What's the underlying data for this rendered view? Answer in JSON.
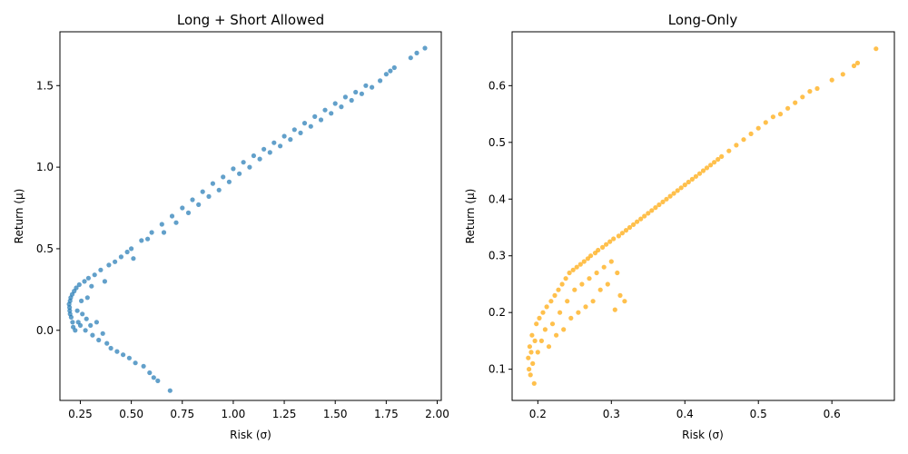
{
  "chart_data": [
    {
      "type": "scatter",
      "title": "Long + Short Allowed",
      "xlabel": "Risk (σ)",
      "ylabel": "Return (μ)",
      "xlim": [
        0.15,
        2.02
      ],
      "ylim": [
        -0.43,
        1.83
      ],
      "xticks": [
        0.25,
        0.5,
        0.75,
        1.0,
        1.25,
        1.5,
        1.75,
        2.0
      ],
      "xtick_labels": [
        "0.25",
        "0.50",
        "0.75",
        "1.00",
        "1.25",
        "1.50",
        "1.75",
        "2.00"
      ],
      "yticks": [
        0.0,
        0.5,
        1.0,
        1.5
      ],
      "ytick_labels": [
        "0.0",
        "0.5",
        "1.0",
        "1.5"
      ],
      "grid": false,
      "color": "#1f77b4",
      "series": [
        {
          "points": [
            [
              0.195,
              0.16
            ],
            [
              0.197,
              0.14
            ],
            [
              0.198,
              0.12
            ],
            [
              0.2,
              0.18
            ],
            [
              0.2,
              0.1
            ],
            [
              0.203,
              0.2
            ],
            [
              0.205,
              0.08
            ],
            [
              0.21,
              0.22
            ],
            [
              0.212,
              0.05
            ],
            [
              0.215,
              0.02
            ],
            [
              0.22,
              0.24
            ],
            [
              0.225,
              0.0
            ],
            [
              0.23,
              0.26
            ],
            [
              0.235,
              0.12
            ],
            [
              0.24,
              0.05
            ],
            [
              0.245,
              0.28
            ],
            [
              0.25,
              0.03
            ],
            [
              0.255,
              0.18
            ],
            [
              0.26,
              0.1
            ],
            [
              0.27,
              0.3
            ],
            [
              0.275,
              0.0
            ],
            [
              0.28,
              0.07
            ],
            [
              0.285,
              0.2
            ],
            [
              0.29,
              0.32
            ],
            [
              0.3,
              0.03
            ],
            [
              0.305,
              0.27
            ],
            [
              0.31,
              -0.03
            ],
            [
              0.32,
              0.34
            ],
            [
              0.33,
              0.05
            ],
            [
              0.34,
              -0.06
            ],
            [
              0.35,
              0.37
            ],
            [
              0.36,
              -0.02
            ],
            [
              0.37,
              0.3
            ],
            [
              0.38,
              -0.08
            ],
            [
              0.39,
              0.4
            ],
            [
              0.4,
              -0.11
            ],
            [
              0.42,
              0.42
            ],
            [
              0.43,
              -0.13
            ],
            [
              0.45,
              0.45
            ],
            [
              0.46,
              -0.15
            ],
            [
              0.48,
              0.48
            ],
            [
              0.49,
              -0.17
            ],
            [
              0.5,
              0.5
            ],
            [
              0.51,
              0.44
            ],
            [
              0.52,
              -0.2
            ],
            [
              0.55,
              0.55
            ],
            [
              0.56,
              -0.22
            ],
            [
              0.58,
              0.56
            ],
            [
              0.59,
              -0.26
            ],
            [
              0.6,
              0.6
            ],
            [
              0.61,
              -0.29
            ],
            [
              0.63,
              -0.31
            ],
            [
              0.65,
              0.65
            ],
            [
              0.66,
              0.6
            ],
            [
              0.69,
              -0.37
            ],
            [
              0.7,
              0.7
            ],
            [
              0.72,
              0.66
            ],
            [
              0.75,
              0.75
            ],
            [
              0.78,
              0.72
            ],
            [
              0.8,
              0.8
            ],
            [
              0.83,
              0.77
            ],
            [
              0.85,
              0.85
            ],
            [
              0.88,
              0.82
            ],
            [
              0.9,
              0.9
            ],
            [
              0.93,
              0.86
            ],
            [
              0.95,
              0.94
            ],
            [
              0.98,
              0.91
            ],
            [
              1.0,
              0.99
            ],
            [
              1.03,
              0.96
            ],
            [
              1.05,
              1.03
            ],
            [
              1.08,
              1.0
            ],
            [
              1.1,
              1.07
            ],
            [
              1.13,
              1.05
            ],
            [
              1.15,
              1.11
            ],
            [
              1.18,
              1.09
            ],
            [
              1.2,
              1.15
            ],
            [
              1.23,
              1.13
            ],
            [
              1.25,
              1.19
            ],
            [
              1.28,
              1.17
            ],
            [
              1.3,
              1.23
            ],
            [
              1.33,
              1.21
            ],
            [
              1.35,
              1.27
            ],
            [
              1.38,
              1.25
            ],
            [
              1.4,
              1.31
            ],
            [
              1.43,
              1.29
            ],
            [
              1.45,
              1.35
            ],
            [
              1.48,
              1.33
            ],
            [
              1.5,
              1.39
            ],
            [
              1.53,
              1.37
            ],
            [
              1.55,
              1.43
            ],
            [
              1.58,
              1.41
            ],
            [
              1.6,
              1.46
            ],
            [
              1.63,
              1.45
            ],
            [
              1.65,
              1.5
            ],
            [
              1.68,
              1.49
            ],
            [
              1.72,
              1.53
            ],
            [
              1.75,
              1.57
            ],
            [
              1.77,
              1.59
            ],
            [
              1.79,
              1.61
            ],
            [
              1.87,
              1.67
            ],
            [
              1.9,
              1.7
            ],
            [
              1.94,
              1.73
            ]
          ]
        }
      ]
    },
    {
      "type": "scatter",
      "title": "Long-Only",
      "xlabel": "Risk (σ)",
      "ylabel": "Return (μ)",
      "xlim": [
        0.165,
        0.685
      ],
      "ylim": [
        0.045,
        0.695
      ],
      "xticks": [
        0.2,
        0.3,
        0.4,
        0.5,
        0.6
      ],
      "xtick_labels": [
        "0.2",
        "0.3",
        "0.4",
        "0.5",
        "0.6"
      ],
      "yticks": [
        0.1,
        0.2,
        0.3,
        0.4,
        0.5,
        0.6
      ],
      "ytick_labels": [
        "0.1",
        "0.2",
        "0.3",
        "0.4",
        "0.5",
        "0.6"
      ],
      "grid": false,
      "color": "#ffa500",
      "series": [
        {
          "points": [
            [
              0.187,
              0.12
            ],
            [
              0.188,
              0.1
            ],
            [
              0.189,
              0.14
            ],
            [
              0.19,
              0.09
            ],
            [
              0.191,
              0.13
            ],
            [
              0.192,
              0.16
            ],
            [
              0.193,
              0.11
            ],
            [
              0.195,
              0.075
            ],
            [
              0.196,
              0.15
            ],
            [
              0.198,
              0.18
            ],
            [
              0.2,
              0.13
            ],
            [
              0.202,
              0.19
            ],
            [
              0.205,
              0.15
            ],
            [
              0.207,
              0.2
            ],
            [
              0.21,
              0.17
            ],
            [
              0.212,
              0.21
            ],
            [
              0.215,
              0.14
            ],
            [
              0.218,
              0.22
            ],
            [
              0.22,
              0.18
            ],
            [
              0.223,
              0.23
            ],
            [
              0.225,
              0.16
            ],
            [
              0.228,
              0.24
            ],
            [
              0.23,
              0.2
            ],
            [
              0.233,
              0.25
            ],
            [
              0.235,
              0.17
            ],
            [
              0.238,
              0.26
            ],
            [
              0.24,
              0.22
            ],
            [
              0.243,
              0.27
            ],
            [
              0.245,
              0.19
            ],
            [
              0.248,
              0.275
            ],
            [
              0.25,
              0.24
            ],
            [
              0.253,
              0.28
            ],
            [
              0.255,
              0.2
            ],
            [
              0.258,
              0.285
            ],
            [
              0.26,
              0.25
            ],
            [
              0.263,
              0.29
            ],
            [
              0.265,
              0.21
            ],
            [
              0.268,
              0.295
            ],
            [
              0.27,
              0.26
            ],
            [
              0.272,
              0.3
            ],
            [
              0.275,
              0.22
            ],
            [
              0.278,
              0.305
            ],
            [
              0.28,
              0.27
            ],
            [
              0.282,
              0.31
            ],
            [
              0.285,
              0.24
            ],
            [
              0.288,
              0.315
            ],
            [
              0.29,
              0.28
            ],
            [
              0.293,
              0.32
            ],
            [
              0.295,
              0.25
            ],
            [
              0.298,
              0.325
            ],
            [
              0.3,
              0.29
            ],
            [
              0.303,
              0.33
            ],
            [
              0.305,
              0.205
            ],
            [
              0.308,
              0.27
            ],
            [
              0.31,
              0.335
            ],
            [
              0.312,
              0.23
            ],
            [
              0.315,
              0.34
            ],
            [
              0.318,
              0.22
            ],
            [
              0.32,
              0.345
            ],
            [
              0.325,
              0.35
            ],
            [
              0.33,
              0.355
            ],
            [
              0.335,
              0.36
            ],
            [
              0.34,
              0.365
            ],
            [
              0.345,
              0.37
            ],
            [
              0.35,
              0.375
            ],
            [
              0.355,
              0.38
            ],
            [
              0.36,
              0.385
            ],
            [
              0.365,
              0.39
            ],
            [
              0.37,
              0.395
            ],
            [
              0.375,
              0.4
            ],
            [
              0.38,
              0.405
            ],
            [
              0.385,
              0.41
            ],
            [
              0.39,
              0.415
            ],
            [
              0.395,
              0.42
            ],
            [
              0.4,
              0.425
            ],
            [
              0.405,
              0.43
            ],
            [
              0.41,
              0.435
            ],
            [
              0.415,
              0.44
            ],
            [
              0.42,
              0.445
            ],
            [
              0.425,
              0.45
            ],
            [
              0.43,
              0.455
            ],
            [
              0.435,
              0.46
            ],
            [
              0.44,
              0.465
            ],
            [
              0.445,
              0.47
            ],
            [
              0.45,
              0.475
            ],
            [
              0.46,
              0.485
            ],
            [
              0.47,
              0.495
            ],
            [
              0.48,
              0.505
            ],
            [
              0.49,
              0.515
            ],
            [
              0.5,
              0.525
            ],
            [
              0.51,
              0.535
            ],
            [
              0.52,
              0.545
            ],
            [
              0.53,
              0.55
            ],
            [
              0.54,
              0.56
            ],
            [
              0.55,
              0.57
            ],
            [
              0.56,
              0.58
            ],
            [
              0.57,
              0.59
            ],
            [
              0.58,
              0.595
            ],
            [
              0.6,
              0.61
            ],
            [
              0.615,
              0.62
            ],
            [
              0.63,
              0.635
            ],
            [
              0.635,
              0.64
            ],
            [
              0.66,
              0.665
            ]
          ]
        }
      ]
    }
  ]
}
